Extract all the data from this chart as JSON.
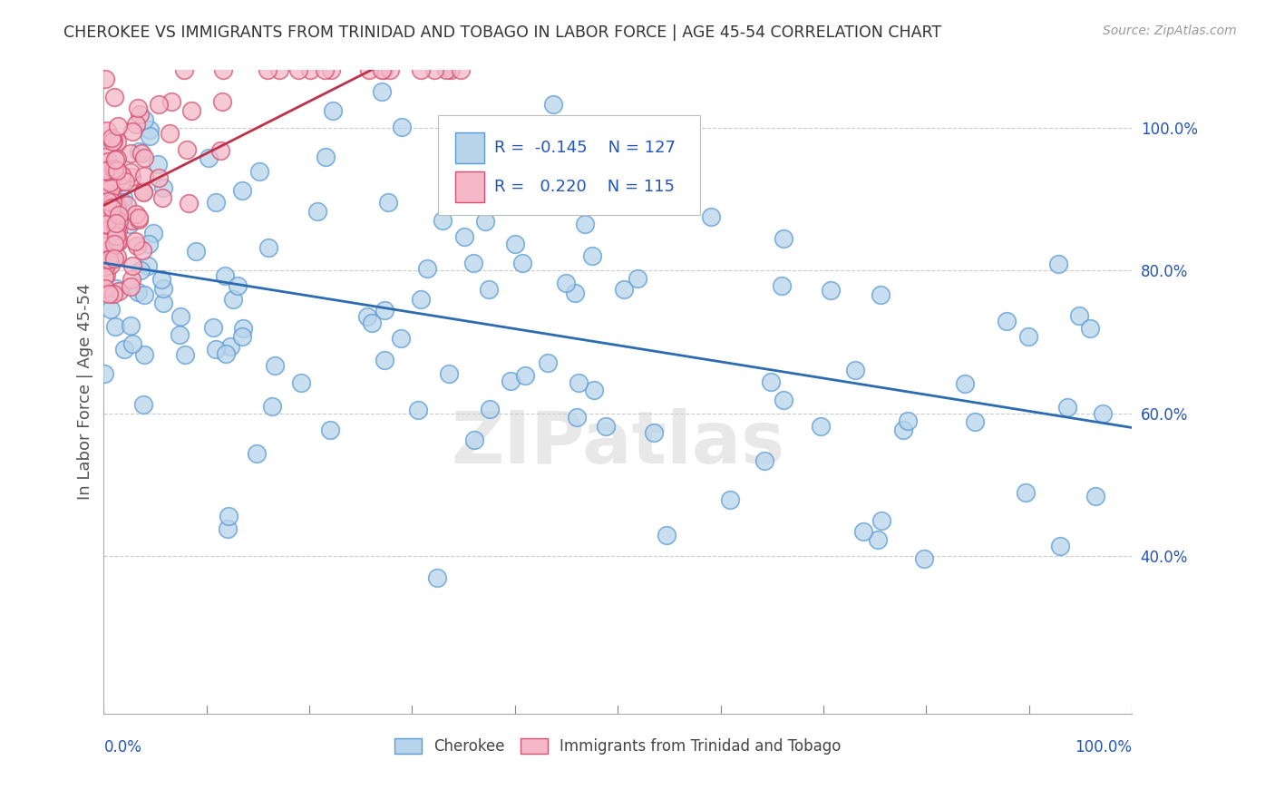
{
  "title": "CHEROKEE VS IMMIGRANTS FROM TRINIDAD AND TOBAGO IN LABOR FORCE | AGE 45-54 CORRELATION CHART",
  "source": "Source: ZipAtlas.com",
  "ylabel": "In Labor Force | Age 45-54",
  "cherokee_color": "#b8d4ea",
  "cherokee_edge": "#5b9bd5",
  "trinidad_color": "#f4b8c8",
  "trinidad_edge": "#d45070",
  "trend_blue": "#2b6cb0",
  "trend_pink": "#c0304a",
  "cherokee_legend": "Cherokee",
  "trinidad_legend": "Immigrants from Trinidad and Tobago",
  "R_cherokee": -0.145,
  "N_cherokee": 127,
  "R_trinidad": 0.22,
  "N_trinidad": 115,
  "watermark": "ZIPatlas",
  "background_color": "#ffffff",
  "grid_color": "#cccccc",
  "title_color": "#333333",
  "source_color": "#999999",
  "axis_label_color": "#555555",
  "tick_color": "#2255bb",
  "legend_text_color": "#2255bb"
}
